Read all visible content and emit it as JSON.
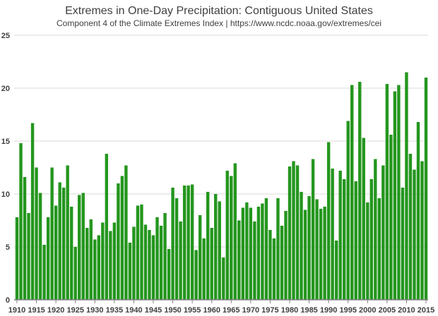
{
  "chart_data": {
    "type": "bar",
    "title": "Extremes in One-Day Precipitation: Contiguous United States",
    "subtitle": "Component 4 of the Climate Extremes Index | https://www.ncdc.noaa.gov/extremes/cei",
    "xlabel": "",
    "ylabel": "",
    "ylim": [
      0,
      25
    ],
    "yticks": [
      0,
      5,
      10,
      15,
      20,
      25
    ],
    "xticks": [
      1910,
      1915,
      1920,
      1925,
      1930,
      1935,
      1940,
      1945,
      1950,
      1955,
      1960,
      1965,
      1970,
      1975,
      1980,
      1985,
      1990,
      1995,
      2000,
      2005,
      2010,
      2015
    ],
    "grid": true,
    "bar_color": "#24961E",
    "x_start": 1910,
    "values": [
      7.8,
      14.8,
      11.6,
      8.2,
      16.7,
      12.5,
      10.1,
      5.2,
      7.8,
      12.5,
      8.9,
      11.1,
      10.6,
      12.7,
      8.8,
      5.0,
      9.9,
      10.1,
      6.8,
      7.6,
      5.7,
      6.1,
      7.3,
      13.8,
      6.5,
      7.3,
      11.0,
      11.7,
      12.7,
      5.4,
      6.9,
      8.9,
      9.0,
      7.1,
      6.6,
      6.1,
      7.8,
      7.0,
      8.2,
      4.8,
      10.6,
      9.6,
      7.4,
      10.8,
      10.8,
      10.9,
      4.7,
      8.0,
      5.8,
      10.2,
      6.8,
      10.0,
      9.3,
      4.0,
      12.2,
      11.7,
      12.9,
      7.5,
      8.7,
      9.2,
      8.7,
      7.4,
      8.8,
      9.1,
      9.6,
      6.6,
      5.8,
      9.6,
      7.0,
      8.4,
      12.6,
      13.1,
      12.7,
      10.2,
      8.5,
      9.8,
      13.3,
      9.5,
      8.6,
      8.8,
      14.9,
      12.4,
      5.6,
      12.2,
      11.4,
      16.9,
      20.3,
      11.2,
      20.6,
      15.3,
      9.2,
      11.4,
      13.3,
      9.6,
      12.7,
      20.4,
      15.6,
      19.7,
      20.3,
      10.6,
      21.5,
      13.8,
      12.3,
      16.8,
      13.1,
      21.0
    ]
  }
}
